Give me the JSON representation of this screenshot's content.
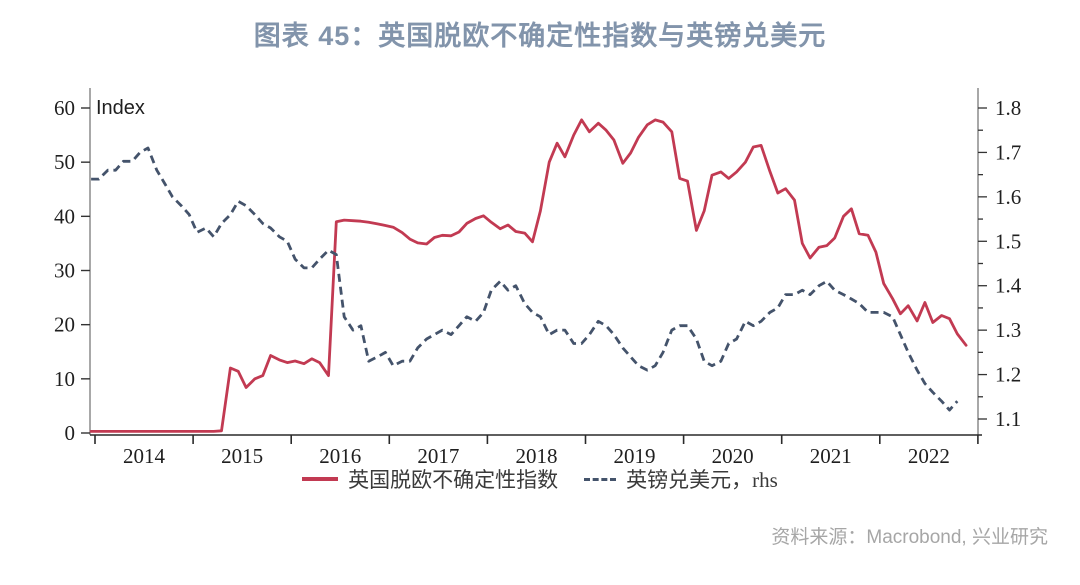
{
  "title": {
    "text": "图表 45：英国脱欧不确定性指数与英镑兑美元",
    "color": "#8294ab"
  },
  "source": {
    "text": "资料来源：Macrobond, 兴业研究",
    "color": "#a6a6a6"
  },
  "legend": {
    "items": [
      {
        "label": "英国脱欧不确定性指数",
        "color": "#c23a52",
        "style": "solid"
      },
      {
        "label": "英镑兑美元，rhs",
        "color": "#44536b",
        "style": "dashed"
      }
    ]
  },
  "chart_data": {
    "type": "line",
    "title": "图表 45：英国脱欧不确定性指数与英镑兑美元",
    "grid": false,
    "legend_position": "bottom",
    "x_axis": {
      "boundary_ticks": [
        2014,
        2015,
        2016,
        2017,
        2018,
        2019,
        2020,
        2021,
        2022,
        2023
      ],
      "year_labels": [
        "2014",
        "2015",
        "2016",
        "2017",
        "2018",
        "2019",
        "2020",
        "2021",
        "2022"
      ]
    },
    "y_left": {
      "label": "Index",
      "min": 0,
      "max": 60,
      "ticks": [
        "0",
        "10",
        "20",
        "30",
        "40",
        "50",
        "60"
      ]
    },
    "y_right": {
      "min": 1.1,
      "max": 1.8,
      "minor_step": 0.05,
      "ticks": [
        "1.1",
        "1.2",
        "1.3",
        "1.4",
        "1.5",
        "1.6",
        "1.7",
        "1.8"
      ]
    },
    "series": [
      {
        "name": "英国脱欧不确定性指数",
        "axis": "left",
        "color": "#c23a52",
        "style": "solid",
        "points": [
          [
            2013.96,
            0.3
          ],
          [
            2014.04,
            0.3
          ],
          [
            2014.13,
            0.3
          ],
          [
            2014.21,
            0.3
          ],
          [
            2014.29,
            0.3
          ],
          [
            2014.38,
            0.3
          ],
          [
            2014.46,
            0.3
          ],
          [
            2014.54,
            0.3
          ],
          [
            2014.63,
            0.3
          ],
          [
            2014.71,
            0.3
          ],
          [
            2014.79,
            0.3
          ],
          [
            2014.88,
            0.3
          ],
          [
            2014.96,
            0.3
          ],
          [
            2015.04,
            0.3
          ],
          [
            2015.13,
            0.3
          ],
          [
            2015.21,
            0.3
          ],
          [
            2015.29,
            0.4
          ],
          [
            2015.38,
            12
          ],
          [
            2015.46,
            11.4
          ],
          [
            2015.54,
            8.4
          ],
          [
            2015.63,
            10
          ],
          [
            2015.71,
            10.6
          ],
          [
            2015.79,
            14.3
          ],
          [
            2015.88,
            13.5
          ],
          [
            2015.96,
            13
          ],
          [
            2016.04,
            13.3
          ],
          [
            2016.13,
            12.8
          ],
          [
            2016.21,
            13.7
          ],
          [
            2016.29,
            13
          ],
          [
            2016.38,
            10.6
          ],
          [
            2016.46,
            39
          ],
          [
            2016.54,
            39.3
          ],
          [
            2016.63,
            39.2
          ],
          [
            2016.71,
            39.1
          ],
          [
            2016.79,
            38.9
          ],
          [
            2016.88,
            38.6
          ],
          [
            2016.96,
            38.3
          ],
          [
            2017.04,
            38
          ],
          [
            2017.13,
            37
          ],
          [
            2017.21,
            35.8
          ],
          [
            2017.29,
            35.1
          ],
          [
            2017.38,
            34.9
          ],
          [
            2017.46,
            36.1
          ],
          [
            2017.54,
            36.5
          ],
          [
            2017.63,
            36.4
          ],
          [
            2017.71,
            37.1
          ],
          [
            2017.79,
            38.7
          ],
          [
            2017.88,
            39.6
          ],
          [
            2017.96,
            40.1
          ],
          [
            2018.04,
            38.9
          ],
          [
            2018.13,
            37.7
          ],
          [
            2018.21,
            38.4
          ],
          [
            2018.29,
            37.2
          ],
          [
            2018.38,
            36.9
          ],
          [
            2018.46,
            35.3
          ],
          [
            2018.54,
            41
          ],
          [
            2018.63,
            50
          ],
          [
            2018.71,
            53.5
          ],
          [
            2018.79,
            51
          ],
          [
            2018.88,
            55
          ],
          [
            2018.96,
            57.8
          ],
          [
            2019.04,
            55.6
          ],
          [
            2019.13,
            57.2
          ],
          [
            2019.21,
            55.9
          ],
          [
            2019.29,
            54.1
          ],
          [
            2019.38,
            49.8
          ],
          [
            2019.46,
            51.7
          ],
          [
            2019.54,
            54.6
          ],
          [
            2019.63,
            56.9
          ],
          [
            2019.71,
            57.8
          ],
          [
            2019.79,
            57.4
          ],
          [
            2019.88,
            55.6
          ],
          [
            2019.96,
            47
          ],
          [
            2020.04,
            46.5
          ],
          [
            2020.13,
            37.4
          ],
          [
            2020.21,
            41
          ],
          [
            2020.29,
            47.6
          ],
          [
            2020.38,
            48.2
          ],
          [
            2020.46,
            47
          ],
          [
            2020.54,
            48.2
          ],
          [
            2020.63,
            50
          ],
          [
            2020.71,
            52.8
          ],
          [
            2020.79,
            53.1
          ],
          [
            2020.88,
            48.3
          ],
          [
            2020.96,
            44.3
          ],
          [
            2021.04,
            45.1
          ],
          [
            2021.13,
            43
          ],
          [
            2021.21,
            35
          ],
          [
            2021.29,
            32.3
          ],
          [
            2021.38,
            34.3
          ],
          [
            2021.46,
            34.6
          ],
          [
            2021.54,
            36
          ],
          [
            2021.63,
            40
          ],
          [
            2021.71,
            41.4
          ],
          [
            2021.79,
            36.8
          ],
          [
            2021.88,
            36.5
          ],
          [
            2021.96,
            33.4
          ],
          [
            2022.04,
            27.6
          ],
          [
            2022.13,
            24.8
          ],
          [
            2022.21,
            22
          ],
          [
            2022.29,
            23.5
          ],
          [
            2022.38,
            20.7
          ],
          [
            2022.46,
            24.1
          ],
          [
            2022.54,
            20.4
          ],
          [
            2022.63,
            21.7
          ],
          [
            2022.71,
            21.1
          ],
          [
            2022.79,
            18.3
          ],
          [
            2022.88,
            16.2
          ]
        ]
      },
      {
        "name": "英镑兑美元，rhs",
        "axis": "right",
        "color": "#44536b",
        "style": "dashed",
        "points": [
          [
            2013.96,
            1.64
          ],
          [
            2014.04,
            1.64
          ],
          [
            2014.13,
            1.66
          ],
          [
            2014.21,
            1.66
          ],
          [
            2014.29,
            1.68
          ],
          [
            2014.38,
            1.68
          ],
          [
            2014.46,
            1.7
          ],
          [
            2014.54,
            1.71
          ],
          [
            2014.63,
            1.66
          ],
          [
            2014.71,
            1.63
          ],
          [
            2014.79,
            1.6
          ],
          [
            2014.88,
            1.58
          ],
          [
            2014.96,
            1.56
          ],
          [
            2015.04,
            1.52
          ],
          [
            2015.13,
            1.53
          ],
          [
            2015.21,
            1.51
          ],
          [
            2015.29,
            1.54
          ],
          [
            2015.38,
            1.56
          ],
          [
            2015.46,
            1.59
          ],
          [
            2015.54,
            1.58
          ],
          [
            2015.63,
            1.56
          ],
          [
            2015.71,
            1.54
          ],
          [
            2015.79,
            1.53
          ],
          [
            2015.88,
            1.51
          ],
          [
            2015.96,
            1.5
          ],
          [
            2016.04,
            1.46
          ],
          [
            2016.13,
            1.44
          ],
          [
            2016.21,
            1.44
          ],
          [
            2016.29,
            1.46
          ],
          [
            2016.38,
            1.48
          ],
          [
            2016.46,
            1.47
          ],
          [
            2016.54,
            1.33
          ],
          [
            2016.63,
            1.3
          ],
          [
            2016.71,
            1.31
          ],
          [
            2016.79,
            1.23
          ],
          [
            2016.88,
            1.24
          ],
          [
            2016.96,
            1.25
          ],
          [
            2017.04,
            1.22
          ],
          [
            2017.13,
            1.23
          ],
          [
            2017.21,
            1.23
          ],
          [
            2017.29,
            1.26
          ],
          [
            2017.38,
            1.28
          ],
          [
            2017.46,
            1.29
          ],
          [
            2017.54,
            1.3
          ],
          [
            2017.63,
            1.29
          ],
          [
            2017.71,
            1.31
          ],
          [
            2017.79,
            1.33
          ],
          [
            2017.88,
            1.32
          ],
          [
            2017.96,
            1.34
          ],
          [
            2018.04,
            1.39
          ],
          [
            2018.13,
            1.41
          ],
          [
            2018.21,
            1.39
          ],
          [
            2018.29,
            1.4
          ],
          [
            2018.38,
            1.36
          ],
          [
            2018.46,
            1.34
          ],
          [
            2018.54,
            1.33
          ],
          [
            2018.63,
            1.29
          ],
          [
            2018.71,
            1.3
          ],
          [
            2018.79,
            1.3
          ],
          [
            2018.88,
            1.27
          ],
          [
            2018.96,
            1.27
          ],
          [
            2019.04,
            1.29
          ],
          [
            2019.13,
            1.32
          ],
          [
            2019.21,
            1.31
          ],
          [
            2019.29,
            1.29
          ],
          [
            2019.38,
            1.26
          ],
          [
            2019.46,
            1.24
          ],
          [
            2019.54,
            1.22
          ],
          [
            2019.63,
            1.21
          ],
          [
            2019.71,
            1.22
          ],
          [
            2019.79,
            1.25
          ],
          [
            2019.88,
            1.3
          ],
          [
            2019.96,
            1.31
          ],
          [
            2020.04,
            1.31
          ],
          [
            2020.13,
            1.28
          ],
          [
            2020.21,
            1.23
          ],
          [
            2020.29,
            1.22
          ],
          [
            2020.38,
            1.23
          ],
          [
            2020.46,
            1.27
          ],
          [
            2020.54,
            1.28
          ],
          [
            2020.63,
            1.32
          ],
          [
            2020.71,
            1.31
          ],
          [
            2020.79,
            1.32
          ],
          [
            2020.88,
            1.34
          ],
          [
            2020.96,
            1.35
          ],
          [
            2021.04,
            1.38
          ],
          [
            2021.13,
            1.38
          ],
          [
            2021.21,
            1.39
          ],
          [
            2021.29,
            1.38
          ],
          [
            2021.38,
            1.4
          ],
          [
            2021.46,
            1.41
          ],
          [
            2021.54,
            1.39
          ],
          [
            2021.63,
            1.38
          ],
          [
            2021.71,
            1.37
          ],
          [
            2021.79,
            1.36
          ],
          [
            2021.88,
            1.34
          ],
          [
            2021.96,
            1.34
          ],
          [
            2022.04,
            1.34
          ],
          [
            2022.13,
            1.33
          ],
          [
            2022.21,
            1.29
          ],
          [
            2022.29,
            1.25
          ],
          [
            2022.38,
            1.21
          ],
          [
            2022.46,
            1.18
          ],
          [
            2022.54,
            1.16
          ],
          [
            2022.63,
            1.14
          ],
          [
            2022.71,
            1.12
          ],
          [
            2022.79,
            1.14
          ]
        ]
      }
    ]
  }
}
